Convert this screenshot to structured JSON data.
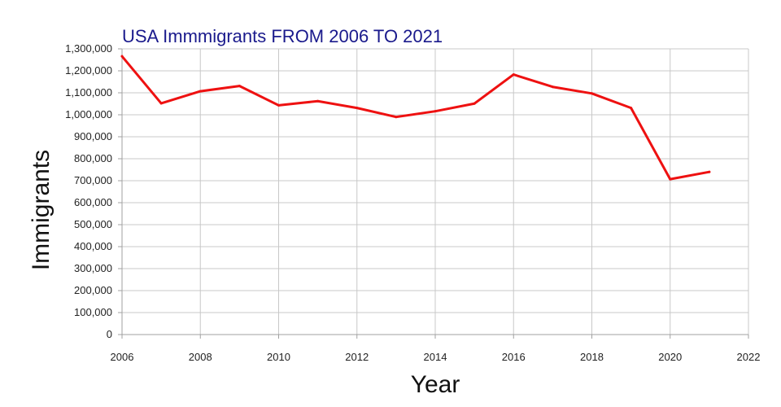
{
  "chart_data": {
    "type": "line",
    "title": "USA Immmigrants FROM 2006 TO 2021",
    "xlabel": "Year",
    "ylabel": "Immigrants",
    "xlim": [
      2006,
      2022
    ],
    "ylim": [
      0,
      1300000
    ],
    "x_ticks": [
      2006,
      2008,
      2010,
      2012,
      2014,
      2016,
      2018,
      2020,
      2022
    ],
    "y_ticks": [
      0,
      100000,
      200000,
      300000,
      400000,
      500000,
      600000,
      700000,
      800000,
      900000,
      1000000,
      1100000,
      1200000,
      1300000
    ],
    "x_tick_labels": [
      "2006",
      "2008",
      "2010",
      "2012",
      "2014",
      "2016",
      "2018",
      "2020",
      "2022"
    ],
    "y_tick_labels": [
      "0",
      "100,000",
      "200,000",
      "300,000",
      "400,000",
      "500,000",
      "600,000",
      "700,000",
      "800,000",
      "900,000",
      "1,000,000",
      "1,100,000",
      "1,200,000",
      "1,300,000"
    ],
    "grid": true,
    "legend": false,
    "x": [
      2006,
      2007,
      2008,
      2009,
      2010,
      2011,
      2012,
      2013,
      2014,
      2015,
      2016,
      2017,
      2018,
      2019,
      2020,
      2021
    ],
    "series": [
      {
        "values": [
          1266000,
          1052000,
          1107000,
          1131000,
          1043000,
          1062000,
          1031000,
          990000,
          1016000,
          1051000,
          1183000,
          1127000,
          1097000,
          1031000,
          707000,
          740000
        ],
        "color": "#ee1111"
      }
    ]
  }
}
